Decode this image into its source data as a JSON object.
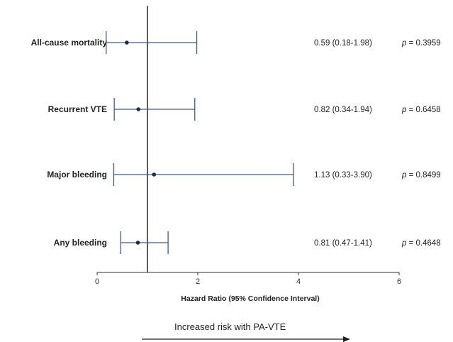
{
  "chart_data": {
    "type": "forest",
    "xlabel": "Hazard Ratio (95% Confidence Interval)",
    "xlim": [
      0,
      6
    ],
    "xticks": [
      0,
      2,
      4,
      6
    ],
    "reference_line": 1,
    "rows": [
      {
        "outcome": "All-cause mortality",
        "hr": 0.59,
        "lower": 0.18,
        "upper": 1.98,
        "hr_text": "0.59 (0.18-1.98)",
        "p_prefix": "p",
        "p_value": "= 0.3959"
      },
      {
        "outcome": "Recurrent VTE",
        "hr": 0.82,
        "lower": 0.34,
        "upper": 1.94,
        "hr_text": "0.82 (0.34-1.94)",
        "p_prefix": "p",
        "p_value": "= 0.6458"
      },
      {
        "outcome": "Major bleeding",
        "hr": 1.13,
        "lower": 0.33,
        "upper": 3.9,
        "hr_text": "1.13 (0.33-3.90)",
        "p_prefix": "p",
        "p_value": "= 0.8499"
      },
      {
        "outcome": "Any bleeding",
        "hr": 0.81,
        "lower": 0.47,
        "upper": 1.41,
        "hr_text": "0.81 (0.47-1.41)",
        "p_prefix": "p",
        "p_value": "= 0.4648"
      }
    ],
    "arrow_label": "Increased risk with PA-VTE",
    "colors": {
      "ci_line": "#3d5a8a",
      "point": "#1f2a55",
      "axis": "#333333"
    }
  }
}
